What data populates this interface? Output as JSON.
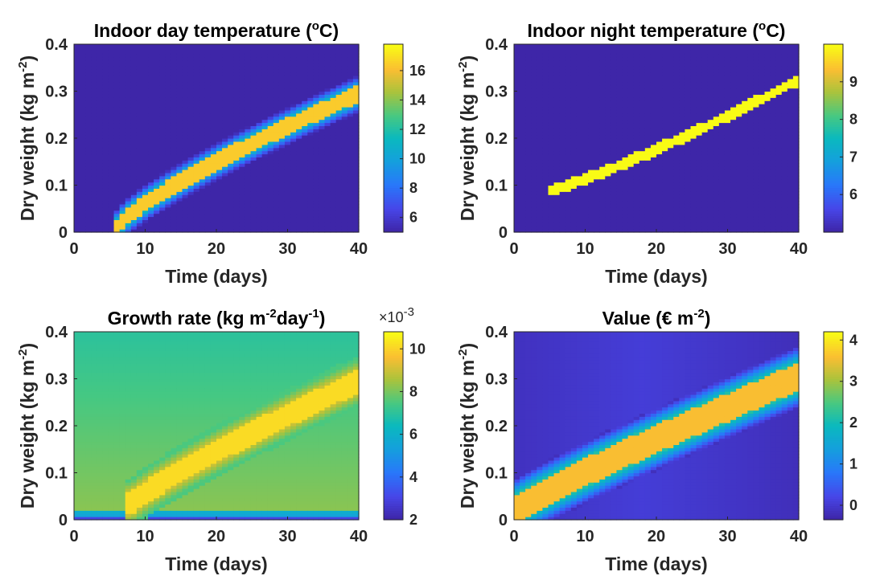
{
  "chart_data": [
    {
      "type": "heatmap",
      "id": "day-temp",
      "title": "Indoor day temperature",
      "title_unit_text": " (",
      "title_unit_sup": "o",
      "title_unit_tail": "C)",
      "xlabel": "Time (days)",
      "ylabel_main": "Dry weight (kg m",
      "ylabel_sup": "-2",
      "ylabel_tail": ")",
      "xlim": [
        0,
        40
      ],
      "ylim": [
        0,
        0.4
      ],
      "xticks": [
        "0",
        "10",
        "20",
        "30",
        "40"
      ],
      "yticks": [
        "0",
        "0.1",
        "0.2",
        "0.3",
        "0.4"
      ],
      "colorbar": {
        "range": [
          5,
          17.8
        ],
        "ticks": [
          6,
          8,
          10,
          12,
          14,
          16
        ],
        "tick_labels": [
          "6",
          "8",
          "10",
          "12",
          "14",
          "16"
        ],
        "multiplier": ""
      },
      "field": {
        "background": 5,
        "band": {
          "center_start": [
            6,
            0.01
          ],
          "center_end": [
            40,
            0.295
          ],
          "curve": 1.25,
          "half_width": 0.018,
          "peak": 16.5,
          "edge": 11
        }
      }
    },
    {
      "type": "heatmap",
      "id": "night-temp",
      "title": "Indoor night temperature",
      "title_unit_text": " (",
      "title_unit_sup": "o",
      "title_unit_tail": "C)",
      "xlabel": "Time (days)",
      "ylabel_main": "Dry weight (kg m",
      "ylabel_sup": "-2",
      "ylabel_tail": ")",
      "xlim": [
        0,
        40
      ],
      "ylim": [
        0,
        0.4
      ],
      "xticks": [
        "0",
        "10",
        "20",
        "30",
        "40"
      ],
      "yticks": [
        "0",
        "0.1",
        "0.2",
        "0.3",
        "0.4"
      ],
      "colorbar": {
        "range": [
          5,
          10
        ],
        "ticks": [
          6,
          7,
          8,
          9
        ],
        "tick_labels": [
          "6",
          "7",
          "8",
          "9"
        ],
        "multiplier": ""
      },
      "field": {
        "background": 5,
        "band": {
          "center_start": [
            5,
            0.09
          ],
          "center_end": [
            40,
            0.325
          ],
          "curve": 0.85,
          "half_width": 0.012,
          "peak": 10,
          "edge": 10
        }
      }
    },
    {
      "type": "heatmap",
      "id": "growth-rate",
      "title": "Growth rate",
      "title_unit_text": " (kg m",
      "title_unit_sup": "-2",
      "title_unit_tail": "day",
      "title_unit_sup2": "-1",
      "title_unit_tail2": ")",
      "xlabel": "Time (days)",
      "ylabel_main": "Dry weight (kg m",
      "ylabel_sup": "-2",
      "ylabel_tail": ")",
      "xlim": [
        0,
        40
      ],
      "ylim": [
        0,
        0.4
      ],
      "xticks": [
        "0",
        "10",
        "20",
        "30",
        "40"
      ],
      "yticks": [
        "0",
        "0.1",
        "0.2",
        "0.3",
        "0.4"
      ],
      "colorbar": {
        "range": [
          2,
          10.8
        ],
        "ticks": [
          2,
          4,
          6,
          8,
          10
        ],
        "tick_labels": [
          "2",
          "4",
          "6",
          "8",
          "10"
        ],
        "multiplier": "×10",
        "multiplier_exp": "-3"
      },
      "field": {
        "background": 7,
        "band": {
          "center_start": [
            8,
            0.035
          ],
          "center_end": [
            40,
            0.295
          ],
          "curve": 1.15,
          "half_width": 0.025,
          "peak": 10.2,
          "edge": 9
        }
      }
    },
    {
      "type": "heatmap",
      "id": "value",
      "title": "Value",
      "title_unit_text": " (€ m",
      "title_unit_sup": "-2",
      "title_unit_tail": ")",
      "xlabel": "Time (days)",
      "ylabel_main": "Dry weight (kg m",
      "ylabel_sup": "-2",
      "ylabel_tail": ")",
      "xlim": [
        0,
        40
      ],
      "ylim": [
        0,
        0.4
      ],
      "xticks": [
        "0",
        "10",
        "20",
        "30",
        "40"
      ],
      "yticks": [
        "0",
        "0.1",
        "0.2",
        "0.3",
        "0.4"
      ],
      "colorbar": {
        "range": [
          -0.35,
          4.2
        ],
        "ticks": [
          0,
          1,
          2,
          3,
          4
        ],
        "tick_labels": [
          "0",
          "1",
          "2",
          "3",
          "4"
        ],
        "multiplier": ""
      },
      "field": {
        "background": -0.2,
        "band": {
          "center_start": [
            0,
            0.02
          ],
          "center_end": [
            40,
            0.305
          ],
          "curve": 1.1,
          "half_width": 0.03,
          "peak": 3.6,
          "edge": 2.2
        }
      }
    }
  ]
}
